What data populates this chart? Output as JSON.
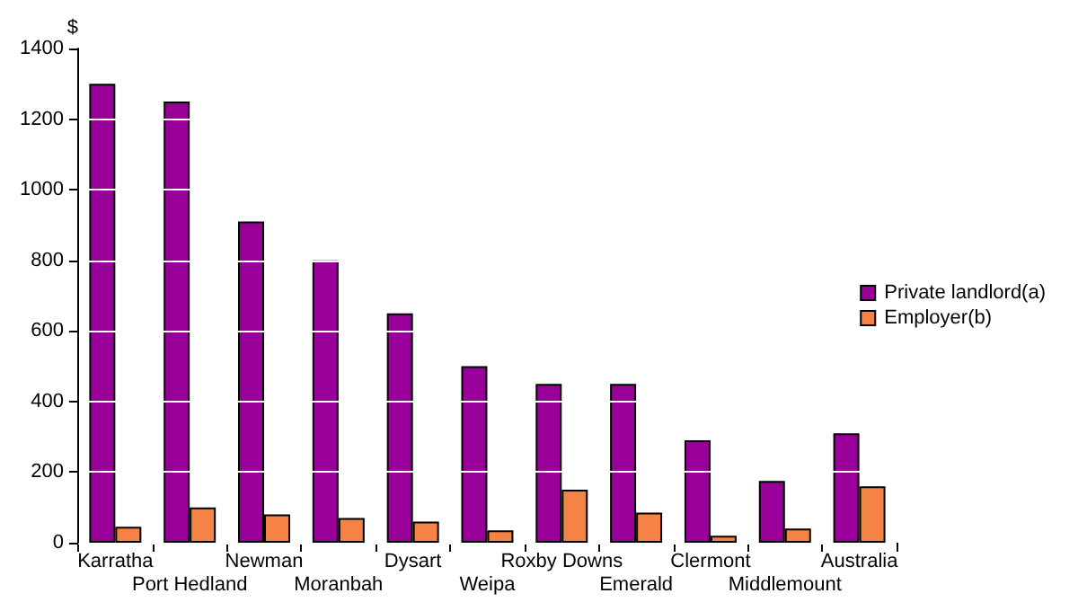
{
  "chart_data": {
    "type": "bar",
    "ylabel": "$",
    "categories": [
      "Karratha",
      "Port Hedland",
      "Newman",
      "Moranbah",
      "Dysart",
      "Weipa",
      "Roxby Downs",
      "Emerald",
      "Clermont",
      "Middlemount",
      "Australia"
    ],
    "series": [
      {
        "name": "Private landlord(a)",
        "color": "#990099",
        "values": [
          1300,
          1250,
          910,
          800,
          650,
          500,
          450,
          450,
          290,
          175,
          310
        ]
      },
      {
        "name": "Employer(b)",
        "color": "#f58345",
        "values": [
          45,
          100,
          80,
          70,
          60,
          35,
          150,
          85,
          20,
          40,
          160
        ]
      }
    ],
    "ylim": [
      0,
      1400
    ],
    "yticks": [
      0,
      200,
      400,
      600,
      800,
      1000,
      1200,
      1400
    ],
    "grid": "y",
    "legend": "right"
  }
}
